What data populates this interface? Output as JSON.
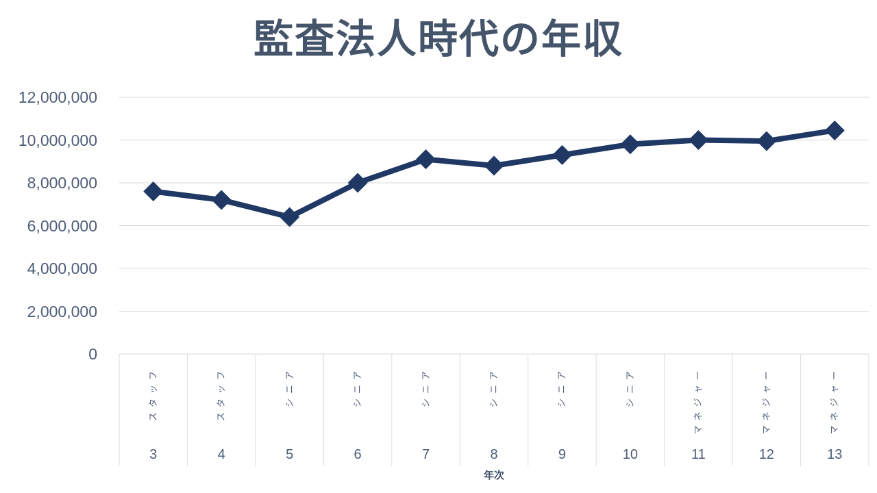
{
  "chart_data": {
    "type": "line",
    "title": "監査法人時代の年収",
    "xlabel": "年次",
    "ylabel": "",
    "legend": "none",
    "grid": "horizontal",
    "marker": "diamond",
    "categories": [
      {
        "year": "3",
        "role": "スタッフ"
      },
      {
        "year": "4",
        "role": "スタッフ"
      },
      {
        "year": "5",
        "role": "シニア"
      },
      {
        "year": "6",
        "role": "シニア"
      },
      {
        "year": "7",
        "role": "シニア"
      },
      {
        "year": "8",
        "role": "シニア"
      },
      {
        "year": "9",
        "role": "シニア"
      },
      {
        "year": "10",
        "role": "シニア"
      },
      {
        "year": "11",
        "role": "マネジャー"
      },
      {
        "year": "12",
        "role": "マネジャー"
      },
      {
        "year": "13",
        "role": "マネジャー"
      }
    ],
    "series": [
      {
        "name": "年収",
        "values": [
          7600000,
          7200000,
          6400000,
          8000000,
          9100000,
          8800000,
          9300000,
          9800000,
          10000000,
          9950000,
          10450000
        ]
      }
    ],
    "ylim": [
      0,
      12000000
    ],
    "ytick_step": 2000000,
    "ytick_labels": [
      "0",
      "2,000,000",
      "4,000,000",
      "6,000,000",
      "8,000,000",
      "10,000,000",
      "12,000,000"
    ],
    "ytick_values": [
      0,
      2000000,
      4000000,
      6000000,
      8000000,
      10000000,
      12000000
    ],
    "colors": {
      "line": "#1F3864",
      "title_text": "#44546A",
      "axis_text": "#4C5C77",
      "gridline": "#D9D9D9",
      "separator": "#D9DDE6"
    }
  }
}
